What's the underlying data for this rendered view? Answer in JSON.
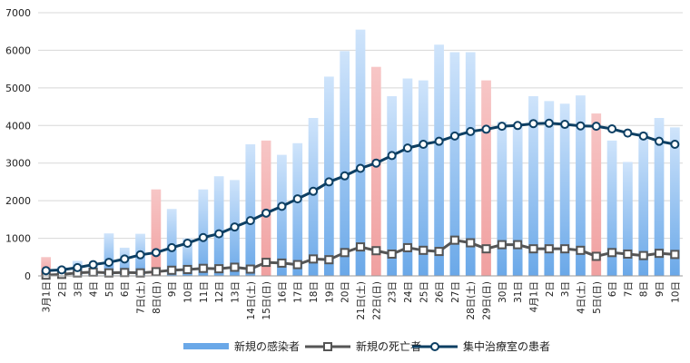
{
  "chart_data": {
    "type": "bar",
    "title": "",
    "xlabel": "",
    "ylabel": "",
    "ylim": [
      0,
      7000
    ],
    "yticks": [
      "0",
      "1000",
      "2000",
      "3000",
      "4000",
      "5000",
      "6000",
      "7000"
    ],
    "grid": true,
    "legend_position": "bottom",
    "colors": {
      "bar_weekday": "#6aa8e8",
      "bar_weekend": "#f0a0a0",
      "deaths_line": "#555555",
      "icu_line": "#0d3f63",
      "grid": "#d8d8d8"
    },
    "categories": [
      "3月1日",
      "2日",
      "3日",
      "4日",
      "5日",
      "6日",
      "7日(土)",
      "8日(日)",
      "9日",
      "10日",
      "11日",
      "12日",
      "13日",
      "14日(土)",
      "15日(日)",
      "16日",
      "17日",
      "18日",
      "19日",
      "20日",
      "21日(土)",
      "22日(日)",
      "23日",
      "24日",
      "25日",
      "26日",
      "27日",
      "28日(土)",
      "29日(日)",
      "30日",
      "31日",
      "4月1日",
      "2日",
      "3日",
      "4日(土)",
      "5日(日)",
      "6日",
      "7日",
      "8日",
      "9日",
      "10日"
    ],
    "weekend_flags": [
      1,
      0,
      0,
      0,
      0,
      0,
      0,
      1,
      0,
      0,
      0,
      0,
      0,
      0,
      1,
      0,
      0,
      0,
      0,
      0,
      0,
      1,
      0,
      0,
      0,
      0,
      0,
      0,
      1,
      0,
      0,
      0,
      0,
      0,
      0,
      1,
      0,
      0,
      0,
      0,
      0
    ],
    "series": [
      {
        "name": "新規の感染者",
        "kind": "bar",
        "values": [
          500,
          250,
          400,
          300,
          1130,
          750,
          1120,
          2300,
          1780,
          1000,
          2300,
          2650,
          2550,
          3500,
          3600,
          3220,
          3530,
          4200,
          5300,
          5980,
          6550,
          5560,
          4780,
          5250,
          5200,
          6150,
          5950,
          5950,
          5200,
          4100,
          4050,
          4780,
          4650,
          4580,
          4800,
          4320,
          3600,
          3030,
          3830,
          4200,
          3950
        ]
      },
      {
        "name": "新規の死亡者",
        "kind": "line",
        "values": [
          20,
          40,
          80,
          100,
          80,
          90,
          80,
          110,
          150,
          170,
          200,
          190,
          230,
          180,
          360,
          340,
          300,
          450,
          430,
          620,
          770,
          670,
          580,
          750,
          680,
          650,
          950,
          880,
          720,
          830,
          830,
          720,
          720,
          720,
          680,
          520,
          620,
          580,
          540,
          600,
          570
        ]
      },
      {
        "name": "集中治療室の患者",
        "kind": "line",
        "values": [
          140,
          160,
          220,
          300,
          360,
          450,
          560,
          620,
          750,
          870,
          1020,
          1120,
          1300,
          1470,
          1670,
          1850,
          2050,
          2250,
          2500,
          2660,
          2860,
          3000,
          3200,
          3400,
          3500,
          3580,
          3720,
          3840,
          3900,
          3980,
          4000,
          4050,
          4060,
          4030,
          3990,
          3980,
          3910,
          3800,
          3720,
          3580,
          3500
        ]
      }
    ]
  }
}
